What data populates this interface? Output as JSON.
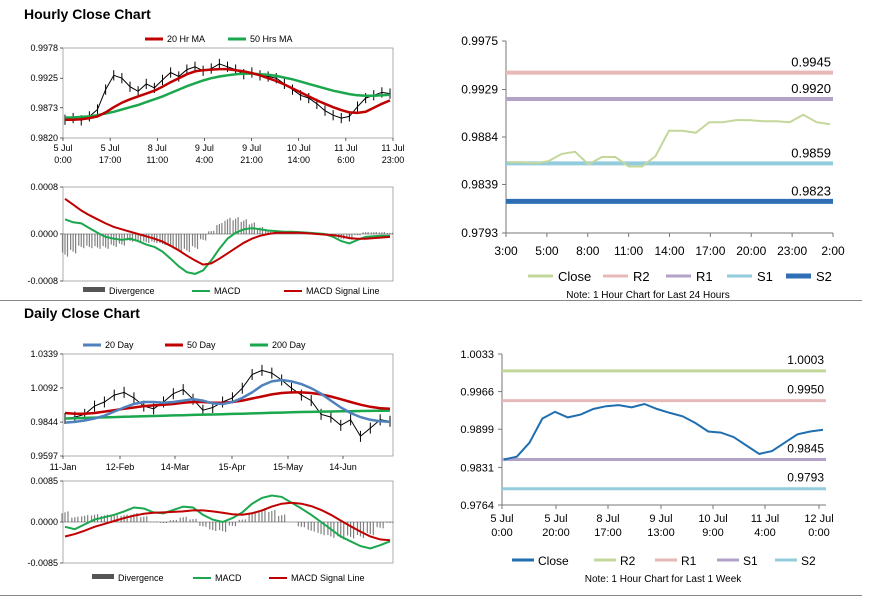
{
  "sections": {
    "hourly_title": "Hourly Close Chart",
    "daily_title": "Daily Close Chart"
  },
  "colors": {
    "ma_short": "#c00000",
    "ma_long": "#1aa74d",
    "ma_mid_daily": "#c00000",
    "ma_20_daily": "#4f81bd",
    "price_bar": "#000000",
    "divergence": "#808080",
    "macd": "#1aa74d",
    "signal": "#c00000",
    "close_right_hourly": "#c4d79b",
    "close_right_daily": "#1f6eb0",
    "R2": "#c4d79b",
    "R1": "#e6b9b8",
    "S1": "#b3a2c7",
    "S2": "#93cddd",
    "hourly_R2": "#e6b9b8",
    "hourly_R1": "#b3a2c7",
    "hourly_S1": "#93cddd",
    "hourly_S2": "#2f6eb5"
  },
  "chart_data": [
    {
      "id": "hourly-price",
      "type": "line",
      "legend": [
        "20 Hr MA",
        "50 Hrs MA"
      ],
      "ylim": [
        0.982,
        0.9978
      ],
      "yticks": [
        "0.9978",
        "0.9925",
        "0.9873",
        "0.9820"
      ],
      "xticks": [
        [
          "5 Jul",
          "0:00"
        ],
        [
          "5 Jul",
          "17:00"
        ],
        [
          "8 Jul",
          "11:00"
        ],
        [
          "9 Jul",
          "4:00"
        ],
        [
          "9 Jul",
          "21:00"
        ],
        [
          "10 Jul",
          "14:00"
        ],
        [
          "11 Jul",
          "6:00"
        ],
        [
          "11 Jul",
          "23:00"
        ]
      ],
      "close": [
        0.9852,
        0.9855,
        0.9851,
        0.9858,
        0.987,
        0.9905,
        0.993,
        0.9925,
        0.991,
        0.9902,
        0.9915,
        0.9908,
        0.9922,
        0.9935,
        0.9928,
        0.994,
        0.9945,
        0.9938,
        0.9942,
        0.995,
        0.9945,
        0.994,
        0.9932,
        0.9935,
        0.993,
        0.9928,
        0.9925,
        0.9915,
        0.9905,
        0.9895,
        0.989,
        0.988,
        0.9868,
        0.986,
        0.9855,
        0.9858,
        0.9875,
        0.989,
        0.9895,
        0.99,
        0.9898
      ],
      "ma20": [
        0.9852,
        0.9852,
        0.9853,
        0.9855,
        0.9858,
        0.9865,
        0.9874,
        0.9882,
        0.9888,
        0.9893,
        0.9898,
        0.9903,
        0.991,
        0.9918,
        0.9925,
        0.9932,
        0.9937,
        0.9939,
        0.994,
        0.9941,
        0.9941,
        0.9939,
        0.9937,
        0.9934,
        0.993,
        0.9925,
        0.992,
        0.9914,
        0.9907,
        0.99,
        0.9893,
        0.9886,
        0.988,
        0.9874,
        0.9869,
        0.9865,
        0.9864,
        0.9866,
        0.9873,
        0.988,
        0.9886
      ],
      "ma50": [
        0.9856,
        0.9856,
        0.9857,
        0.9858,
        0.986,
        0.9863,
        0.9866,
        0.987,
        0.9874,
        0.9878,
        0.9883,
        0.9888,
        0.9893,
        0.9899,
        0.9905,
        0.9911,
        0.9916,
        0.9921,
        0.9925,
        0.9928,
        0.993,
        0.9932,
        0.9933,
        0.9933,
        0.9932,
        0.9931,
        0.9929,
        0.9926,
        0.9923,
        0.9919,
        0.9915,
        0.9911,
        0.9907,
        0.9903,
        0.99,
        0.9897,
        0.9895,
        0.9894,
        0.9894,
        0.9895,
        0.9896
      ]
    },
    {
      "id": "hourly-macd",
      "type": "line",
      "legend": [
        "Divergence",
        "MACD",
        "MACD Signal Line"
      ],
      "ylim": [
        -0.0008,
        0.0008
      ],
      "yticks": [
        "0.0008",
        "0.0000",
        "-0.0008"
      ],
      "macd": [
        0.00025,
        0.0002,
        0.00018,
        0.0001,
        2e-05,
        -5e-05,
        -8e-05,
        -0.0001,
        -8e-05,
        -0.00012,
        -0.00018,
        -0.00022,
        -0.0003,
        -0.00042,
        -0.00055,
        -0.00065,
        -0.00068,
        -0.00062,
        -0.00045,
        -0.00025,
        -8e-05,
        2e-05,
        8e-05,
        0.0001,
        8e-05,
        6e-05,
        5e-05,
        4e-05,
        4e-05,
        3e-05,
        2e-05,
        1e-05,
        0.0,
        -5e-05,
        -0.00012,
        -0.00016,
        -0.0001,
        -5e-05,
        -4e-05,
        -3e-05,
        -3e-05
      ],
      "signal": [
        0.0006,
        0.0005,
        0.0004,
        0.00032,
        0.00025,
        0.00018,
        0.00012,
        8e-05,
        4e-05,
        0.0,
        -4e-05,
        -8e-05,
        -0.00013,
        -0.0002,
        -0.00028,
        -0.00037,
        -0.00045,
        -0.00052,
        -0.0005,
        -0.00042,
        -0.00033,
        -0.00024,
        -0.00015,
        -8e-05,
        -3e-05,
        0.0,
        2e-05,
        2e-05,
        2e-05,
        2e-05,
        1e-05,
        0.0,
        -1e-05,
        -2e-05,
        -4e-05,
        -7e-05,
        -8e-05,
        -8e-05,
        -7e-05,
        -6e-05,
        -5e-05
      ]
    },
    {
      "id": "hourly-levels",
      "type": "line",
      "ylim": [
        0.9793,
        0.9975
      ],
      "yticks": [
        "0.9975",
        "0.9929",
        "0.9884",
        "0.9839",
        "0.9793"
      ],
      "xticks": [
        "3:00",
        "5:00",
        "8:00",
        "11:00",
        "14:00",
        "17:00",
        "20:00",
        "23:00",
        "2:00"
      ],
      "levels": {
        "R2": 0.9945,
        "R1": 0.992,
        "S1": 0.9859,
        "S2": 0.9823
      },
      "level_labels": [
        "0.9945",
        "0.9920",
        "0.9859",
        "0.9823"
      ],
      "close": [
        0.986,
        0.986,
        0.9859,
        0.9861,
        0.9868,
        0.987,
        0.9858,
        0.9865,
        0.9865,
        0.9856,
        0.9856,
        0.9866,
        0.989,
        0.989,
        0.9888,
        0.9898,
        0.9898,
        0.99,
        0.99,
        0.9899,
        0.9899,
        0.9898,
        0.9905,
        0.9898,
        0.9896
      ],
      "legend": [
        "Close",
        "R2",
        "R1",
        "S1",
        "S2"
      ],
      "note": "Note: 1 Hour Chart for Last 24 Hours"
    },
    {
      "id": "daily-price",
      "type": "line",
      "legend": [
        "20 Day",
        "50 Day",
        "200 Day"
      ],
      "ylim": [
        0.9597,
        1.0339
      ],
      "yticks": [
        "1.0339",
        "1.0092",
        "0.9844",
        "0.9597"
      ],
      "xticks": [
        "11-Jan",
        "12-Feb",
        "14-Mar",
        "15-Apr",
        "15-May",
        "14-Jun"
      ],
      "close": [
        0.987,
        0.988,
        0.99,
        0.996,
        0.999,
        1.004,
        1.006,
        1.002,
        0.996,
        0.994,
        0.999,
        1.005,
        1.008,
        1.001,
        0.993,
        0.995,
        0.999,
        1.002,
        1.009,
        1.019,
        1.022,
        1.02,
        1.015,
        1.009,
        1.004,
        1.0,
        0.99,
        0.988,
        0.982,
        0.986,
        0.974,
        0.98,
        0.986,
        0.985
      ],
      "ma20": [
        0.984,
        0.9845,
        0.9855,
        0.987,
        0.989,
        0.992,
        0.995,
        0.9975,
        0.999,
        0.999,
        0.9985,
        0.999,
        1.0,
        1.001,
        1.0,
        0.998,
        0.9975,
        0.999,
        1.002,
        1.006,
        1.011,
        1.014,
        1.015,
        1.014,
        1.012,
        1.009,
        1.005,
        1.0,
        0.995,
        0.991,
        0.988,
        0.986,
        0.985,
        0.9845
      ],
      "ma50": [
        0.991,
        0.9905,
        0.9905,
        0.991,
        0.992,
        0.993,
        0.994,
        0.995,
        0.996,
        0.9965,
        0.997,
        0.9975,
        0.9985,
        0.999,
        0.999,
        0.9985,
        0.9985,
        0.999,
        1.0,
        1.0015,
        1.003,
        1.0045,
        1.0055,
        1.006,
        1.006,
        1.0055,
        1.0045,
        1.003,
        1.001,
        0.999,
        0.997,
        0.9955,
        0.9945,
        0.994
      ],
      "ma200": [
        0.987,
        0.9872,
        0.9874,
        0.9876,
        0.9878,
        0.988,
        0.9882,
        0.9884,
        0.9886,
        0.9888,
        0.989,
        0.9892,
        0.9894,
        0.9896,
        0.9898,
        0.9899,
        0.9901,
        0.9903,
        0.9905,
        0.9907,
        0.9909,
        0.9911,
        0.9913,
        0.9915,
        0.9917,
        0.9918,
        0.992,
        0.9921,
        0.9922,
        0.9923,
        0.9924,
        0.9925,
        0.9926,
        0.9927
      ]
    },
    {
      "id": "daily-macd",
      "type": "line",
      "legend": [
        "Divergence",
        "MACD",
        "MACD Signal Line"
      ],
      "ylim": [
        -0.0085,
        0.0085
      ],
      "yticks": [
        "0.0085",
        "0.0000",
        "-0.0085"
      ],
      "macd": [
        -0.001,
        -0.0015,
        -0.0005,
        0.0005,
        0.001,
        0.0015,
        0.0022,
        0.003,
        0.0028,
        0.002,
        0.0018,
        0.0025,
        0.0032,
        0.003,
        0.0015,
        0.0005,
        0.0,
        0.0008,
        0.002,
        0.0038,
        0.005,
        0.0055,
        0.0052,
        0.004,
        0.0028,
        0.0015,
        0.0,
        -0.0015,
        -0.003,
        -0.004,
        -0.005,
        -0.0055,
        -0.0048,
        -0.004
      ],
      "signal": [
        -0.003,
        -0.0025,
        -0.0018,
        -0.001,
        -0.0004,
        0.0002,
        0.0008,
        0.0013,
        0.0017,
        0.0019,
        0.002,
        0.0021,
        0.0022,
        0.0024,
        0.0024,
        0.0022,
        0.0019,
        0.0016,
        0.0015,
        0.0018,
        0.0024,
        0.0032,
        0.0038,
        0.004,
        0.0038,
        0.0033,
        0.0025,
        0.0015,
        0.0003,
        -0.0009,
        -0.002,
        -0.003,
        -0.0036,
        -0.0038
      ]
    },
    {
      "id": "daily-levels",
      "type": "line",
      "ylim": [
        0.9764,
        1.0033
      ],
      "yticks": [
        "1.0033",
        "0.9966",
        "0.9899",
        "0.9831",
        "0.9764"
      ],
      "xticks": [
        [
          "5 Jul",
          "0:00"
        ],
        [
          "5 Jul",
          "20:00"
        ],
        [
          "8 Jul",
          "17:00"
        ],
        [
          "9 Jul",
          "13:00"
        ],
        [
          "10 Jul",
          "9:00"
        ],
        [
          "11 Jul",
          "4:00"
        ],
        [
          "12 Jul",
          "0:00"
        ]
      ],
      "levels": {
        "R2": 1.0003,
        "R1": 0.995,
        "S1": 0.9845,
        "S2": 0.9793
      },
      "level_labels": [
        "1.0003",
        "0.9950",
        "0.9845",
        "0.9793"
      ],
      "close": [
        0.9845,
        0.985,
        0.9875,
        0.9918,
        0.993,
        0.992,
        0.9925,
        0.9935,
        0.994,
        0.9942,
        0.9938,
        0.9944,
        0.9935,
        0.9928,
        0.9922,
        0.991,
        0.9895,
        0.9893,
        0.9885,
        0.987,
        0.9855,
        0.986,
        0.9875,
        0.989,
        0.9895,
        0.9898
      ],
      "legend": [
        "Close",
        "R2",
        "R1",
        "S1",
        "S2"
      ],
      "note": "Note: 1 Hour Chart for Last 1 Week"
    }
  ]
}
